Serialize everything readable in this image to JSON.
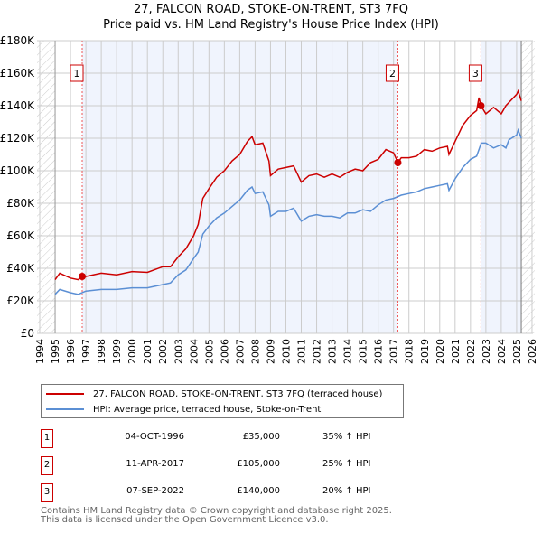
{
  "chart_data": {
    "type": "line",
    "title": "27, FALCON ROAD, STOKE-ON-TRENT, ST3 7FQ",
    "subtitle": "Price paid vs. HM Land Registry's House Price Index (HPI)",
    "xlim": [
      1994,
      2026
    ],
    "ylim": [
      0,
      180000
    ],
    "x_ticks": [
      "1994",
      "1995",
      "1996",
      "1997",
      "1998",
      "1999",
      "2000",
      "2001",
      "2002",
      "2003",
      "2004",
      "2005",
      "2006",
      "2007",
      "2008",
      "2009",
      "2010",
      "2011",
      "2012",
      "2013",
      "2014",
      "2015",
      "2016",
      "2017",
      "2018",
      "2019",
      "2020",
      "2021",
      "2022",
      "2023",
      "2024",
      "2025",
      "2026"
    ],
    "y_ticks": [
      {
        "v": 0,
        "label": "£0"
      },
      {
        "v": 20000,
        "label": "£20K"
      },
      {
        "v": 40000,
        "label": "£40K"
      },
      {
        "v": 60000,
        "label": "£60K"
      },
      {
        "v": 80000,
        "label": "£80K"
      },
      {
        "v": 100000,
        "label": "£100K"
      },
      {
        "v": 120000,
        "label": "£120K"
      },
      {
        "v": 140000,
        "label": "£140K"
      },
      {
        "v": 160000,
        "label": "£160K"
      },
      {
        "v": 180000,
        "label": "£180K"
      }
    ],
    "series": [
      {
        "name": "27, FALCON ROAD, STOKE-ON-TRENT, ST3 7FQ (terraced house)",
        "color": "#cc0000",
        "x": [
          1995,
          1995.3,
          1996,
          1996.5,
          1996.75,
          1997,
          1998,
          1999,
          2000,
          2001,
          2002,
          2002.5,
          2003,
          2003.5,
          2004,
          2004.3,
          2004.6,
          2005,
          2005.5,
          2006,
          2006.5,
          2007,
          2007.5,
          2007.8,
          2008,
          2008.5,
          2008.9,
          2009,
          2009.5,
          2010,
          2010.5,
          2011,
          2011.5,
          2012,
          2012.5,
          2013,
          2013.5,
          2014,
          2014.5,
          2015,
          2015.5,
          2016,
          2016.5,
          2017,
          2017.28,
          2017.5,
          2018,
          2018.5,
          2019,
          2019.5,
          2020,
          2020.5,
          2020.6,
          2021,
          2021.5,
          2022,
          2022.4,
          2022.55,
          2022.68,
          2023,
          2023.5,
          2024,
          2024.3,
          2024.5,
          2025,
          2025.1,
          2025.3
        ],
        "y": [
          33,
          37,
          34,
          33,
          35,
          35,
          37,
          36,
          38,
          37.5,
          41,
          41,
          47,
          52,
          60,
          67,
          83,
          89,
          96,
          100,
          106,
          110,
          118,
          121,
          116,
          117,
          106,
          97,
          101,
          102,
          103,
          93,
          97,
          98,
          96,
          98,
          96,
          99,
          101,
          100,
          105,
          107,
          113,
          111,
          105,
          108,
          108,
          109,
          113,
          112,
          114,
          115,
          110,
          118,
          128,
          134,
          137,
          145,
          140,
          135,
          139,
          135,
          140,
          142,
          147,
          149,
          143
        ]
      },
      {
        "name": "HPI: Average price, terraced house, Stoke-on-Trent",
        "color": "#5b8fd4",
        "x": [
          1995,
          1995.3,
          1996,
          1996.5,
          1997,
          1998,
          1999,
          2000,
          2001,
          2002,
          2002.5,
          2003,
          2003.5,
          2004,
          2004.3,
          2004.6,
          2005,
          2005.5,
          2006,
          2006.5,
          2007,
          2007.5,
          2007.8,
          2008,
          2008.5,
          2008.9,
          2009,
          2009.5,
          2010,
          2010.5,
          2011,
          2011.5,
          2012,
          2012.5,
          2013,
          2013.5,
          2014,
          2014.5,
          2015,
          2015.5,
          2016,
          2016.5,
          2017,
          2017.5,
          2018,
          2018.5,
          2019,
          2019.5,
          2020,
          2020.5,
          2020.6,
          2021,
          2021.5,
          2022,
          2022.4,
          2022.7,
          2023,
          2023.5,
          2024,
          2024.3,
          2024.5,
          2025,
          2025.1,
          2025.3
        ],
        "y": [
          24,
          27,
          25,
          24,
          26,
          27,
          27,
          28,
          28,
          30,
          31,
          36,
          39,
          46,
          50,
          61,
          66,
          71,
          74,
          78,
          82,
          88,
          90,
          86,
          87,
          79,
          72,
          75,
          75,
          77,
          69,
          72,
          73,
          72,
          72,
          71,
          74,
          74,
          76,
          75,
          79,
          82,
          83,
          85,
          86,
          87,
          89,
          90,
          91,
          92,
          88,
          95,
          102,
          107,
          109,
          117,
          117,
          114,
          116,
          114,
          119,
          122,
          125,
          120
        ]
      }
    ],
    "y_units": "thousands GBP",
    "sales": [
      {
        "n": "1",
        "x": 1996.76,
        "date": "04-OCT-1996",
        "price": "£35,000",
        "value": 35,
        "hpi": "35% ↑ HPI"
      },
      {
        "n": "2",
        "x": 2017.28,
        "date": "11-APR-2017",
        "price": "£105,000",
        "value": 105,
        "hpi": "25% ↑ HPI"
      },
      {
        "n": "3",
        "x": 2022.68,
        "date": "07-SEP-2022",
        "price": "£140,000",
        "value": 140,
        "hpi": "20% ↑ HPI"
      }
    ],
    "legend_placement": "below"
  },
  "footer": {
    "line1": "Contains HM Land Registry data © Crown copyright and database right 2025.",
    "line2": "This data is licensed under the Open Government Licence v3.0."
  }
}
